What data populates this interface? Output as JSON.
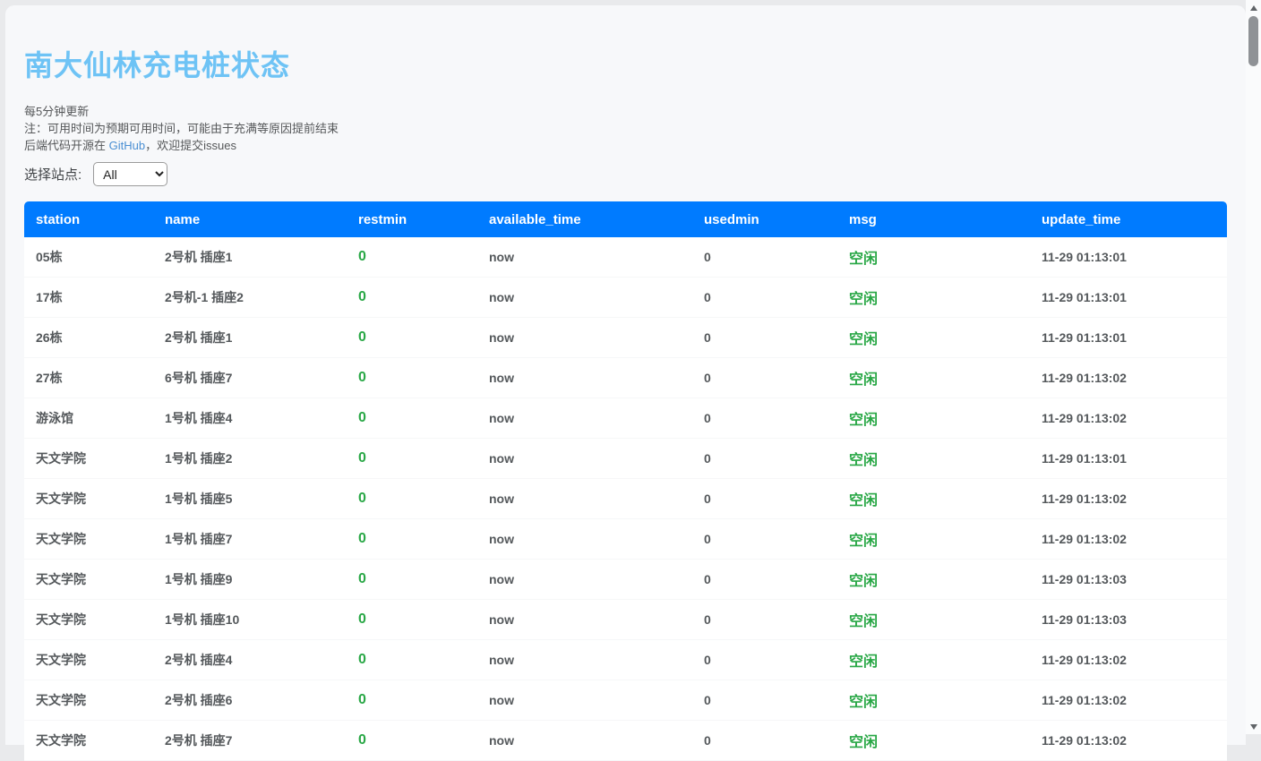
{
  "page": {
    "title": "南大仙林充电桩状态",
    "notes": {
      "line1": "每5分钟更新",
      "line2": "注：可用时间为预期可用时间，可能由于充满等原因提前结束",
      "line3_prefix": "后端代码开源在 ",
      "line3_link": "GitHub",
      "line3_suffix": "，欢迎提交issues"
    },
    "filter": {
      "label": "选择站点:",
      "selected": "All",
      "options": [
        "All"
      ]
    }
  },
  "table": {
    "columns": [
      {
        "key": "station",
        "label": "station"
      },
      {
        "key": "name",
        "label": "name"
      },
      {
        "key": "restmin",
        "label": "restmin"
      },
      {
        "key": "available_time",
        "label": "available_time"
      },
      {
        "key": "usedmin",
        "label": "usedmin"
      },
      {
        "key": "msg",
        "label": "msg"
      },
      {
        "key": "update_time",
        "label": "update_time"
      }
    ],
    "green_columns": [
      "restmin",
      "msg"
    ],
    "rows": [
      {
        "station": "05栋",
        "name": "2号机 插座1",
        "restmin": "0",
        "available_time": "now",
        "usedmin": "0",
        "msg": "空闲",
        "update_time": "11-29 01:13:01"
      },
      {
        "station": "17栋",
        "name": "2号机-1 插座2",
        "restmin": "0",
        "available_time": "now",
        "usedmin": "0",
        "msg": "空闲",
        "update_time": "11-29 01:13:01"
      },
      {
        "station": "26栋",
        "name": "2号机 插座1",
        "restmin": "0",
        "available_time": "now",
        "usedmin": "0",
        "msg": "空闲",
        "update_time": "11-29 01:13:01"
      },
      {
        "station": "27栋",
        "name": "6号机 插座7",
        "restmin": "0",
        "available_time": "now",
        "usedmin": "0",
        "msg": "空闲",
        "update_time": "11-29 01:13:02"
      },
      {
        "station": "游泳馆",
        "name": "1号机 插座4",
        "restmin": "0",
        "available_time": "now",
        "usedmin": "0",
        "msg": "空闲",
        "update_time": "11-29 01:13:02"
      },
      {
        "station": "天文学院",
        "name": "1号机 插座2",
        "restmin": "0",
        "available_time": "now",
        "usedmin": "0",
        "msg": "空闲",
        "update_time": "11-29 01:13:01"
      },
      {
        "station": "天文学院",
        "name": "1号机 插座5",
        "restmin": "0",
        "available_time": "now",
        "usedmin": "0",
        "msg": "空闲",
        "update_time": "11-29 01:13:02"
      },
      {
        "station": "天文学院",
        "name": "1号机 插座7",
        "restmin": "0",
        "available_time": "now",
        "usedmin": "0",
        "msg": "空闲",
        "update_time": "11-29 01:13:02"
      },
      {
        "station": "天文学院",
        "name": "1号机 插座9",
        "restmin": "0",
        "available_time": "now",
        "usedmin": "0",
        "msg": "空闲",
        "update_time": "11-29 01:13:03"
      },
      {
        "station": "天文学院",
        "name": "1号机 插座10",
        "restmin": "0",
        "available_time": "now",
        "usedmin": "0",
        "msg": "空闲",
        "update_time": "11-29 01:13:03"
      },
      {
        "station": "天文学院",
        "name": "2号机 插座4",
        "restmin": "0",
        "available_time": "now",
        "usedmin": "0",
        "msg": "空闲",
        "update_time": "11-29 01:13:02"
      },
      {
        "station": "天文学院",
        "name": "2号机 插座6",
        "restmin": "0",
        "available_time": "now",
        "usedmin": "0",
        "msg": "空闲",
        "update_time": "11-29 01:13:02"
      },
      {
        "station": "天文学院",
        "name": "2号机 插座7",
        "restmin": "0",
        "available_time": "now",
        "usedmin": "0",
        "msg": "空闲",
        "update_time": "11-29 01:13:02"
      }
    ]
  },
  "colors": {
    "header_bg": "#007bff",
    "title_blue": "#6ec3f5",
    "ok_green": "#28a745",
    "link_blue": "#4a8fd3",
    "row_text": "#54585b",
    "card_bg": "#f7f8fa"
  }
}
